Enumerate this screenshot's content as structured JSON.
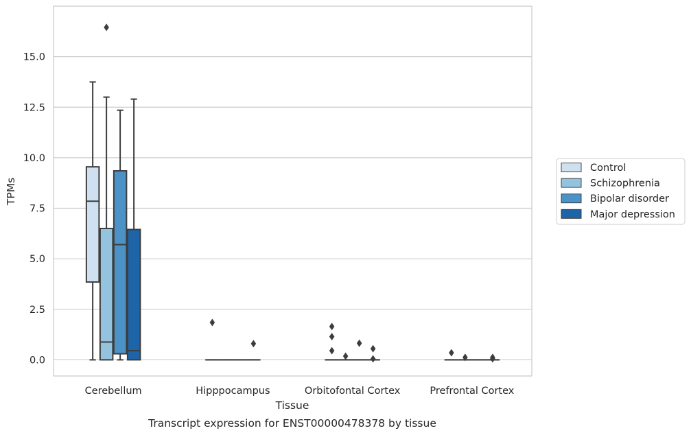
{
  "chart_data": {
    "type": "box",
    "caption": "Transcript expression for ENST00000478378 by tissue",
    "xlabel": "Tissue",
    "ylabel": "TPMs",
    "ylim": [
      -0.8,
      17.5
    ],
    "yticks": [
      "0.0",
      "2.5",
      "5.0",
      "7.5",
      "10.0",
      "12.5",
      "15.0"
    ],
    "grid": "horizontal",
    "legend_position": "right",
    "categories": [
      "Cerebellum",
      "Hipppocampus",
      "Orbitofontal Cortex",
      "Prefrontal Cortex"
    ],
    "series": [
      {
        "name": "Control",
        "color": "#cfe0f1",
        "boxes": [
          {
            "min": 0.0,
            "q1": 3.85,
            "median": 7.85,
            "q3": 9.55,
            "max": 13.75,
            "outliers": []
          },
          {
            "min": 0.0,
            "q1": 0.0,
            "median": 0.0,
            "q3": 0.0,
            "max": 0.0,
            "outliers": [
              1.85
            ]
          },
          {
            "min": 0.0,
            "q1": 0.0,
            "median": 0.0,
            "q3": 0.0,
            "max": 0.0,
            "outliers": [
              1.65,
              1.15,
              0.45
            ]
          },
          {
            "min": 0.0,
            "q1": 0.0,
            "median": 0.0,
            "q3": 0.0,
            "max": 0.0,
            "outliers": [
              0.35
            ]
          }
        ]
      },
      {
        "name": "Schizophrenia",
        "color": "#93c3df",
        "boxes": [
          {
            "min": 0.0,
            "q1": 0.0,
            "median": 0.88,
            "q3": 6.5,
            "max": 13.0,
            "outliers": [
              16.45
            ]
          },
          {
            "min": 0.0,
            "q1": 0.0,
            "median": 0.0,
            "q3": 0.0,
            "max": 0.0,
            "outliers": []
          },
          {
            "min": 0.0,
            "q1": 0.0,
            "median": 0.0,
            "q3": 0.0,
            "max": 0.0,
            "outliers": [
              0.18
            ]
          },
          {
            "min": 0.0,
            "q1": 0.0,
            "median": 0.0,
            "q3": 0.0,
            "max": 0.0,
            "outliers": [
              0.12
            ]
          }
        ]
      },
      {
        "name": "Bipolar disorder",
        "color": "#4d92c6",
        "boxes": [
          {
            "min": 0.0,
            "q1": 0.3,
            "median": 5.7,
            "q3": 9.35,
            "max": 12.35,
            "outliers": []
          },
          {
            "min": 0.0,
            "q1": 0.0,
            "median": 0.0,
            "q3": 0.0,
            "max": 0.0,
            "outliers": []
          },
          {
            "min": 0.0,
            "q1": 0.0,
            "median": 0.0,
            "q3": 0.0,
            "max": 0.0,
            "outliers": [
              0.82
            ]
          },
          {
            "min": 0.0,
            "q1": 0.0,
            "median": 0.0,
            "q3": 0.0,
            "max": 0.0,
            "outliers": []
          }
        ]
      },
      {
        "name": "Major depression",
        "color": "#1e64a8",
        "boxes": [
          {
            "min": 0.0,
            "q1": 0.0,
            "median": 0.45,
            "q3": 6.45,
            "max": 12.9,
            "outliers": []
          },
          {
            "min": 0.0,
            "q1": 0.0,
            "median": 0.0,
            "q3": 0.0,
            "max": 0.0,
            "outliers": [
              0.8
            ]
          },
          {
            "min": 0.0,
            "q1": 0.0,
            "median": 0.0,
            "q3": 0.0,
            "max": 0.0,
            "outliers": [
              0.55,
              0.05
            ]
          },
          {
            "min": 0.0,
            "q1": 0.0,
            "median": 0.0,
            "q3": 0.0,
            "max": 0.0,
            "outliers": [
              0.12,
              0.05
            ]
          }
        ]
      }
    ]
  }
}
